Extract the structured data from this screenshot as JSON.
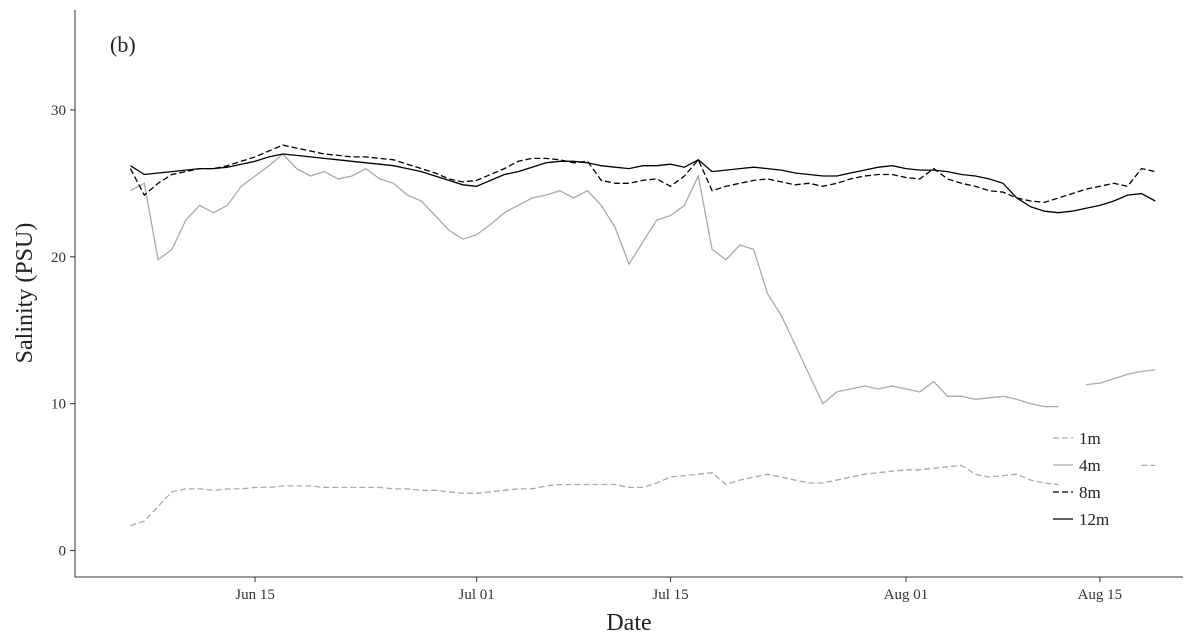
{
  "chart_data": {
    "type": "line",
    "panel_label": "(b)",
    "x_label": "Date",
    "y_label": "Salinity (PSU)",
    "x": [
      "Jun 06",
      "Jun 07",
      "Jun 08",
      "Jun 09",
      "Jun 10",
      "Jun 11",
      "Jun 12",
      "Jun 13",
      "Jun 14",
      "Jun 15",
      "Jun 16",
      "Jun 17",
      "Jun 18",
      "Jun 19",
      "Jun 20",
      "Jun 21",
      "Jun 22",
      "Jun 23",
      "Jun 24",
      "Jun 25",
      "Jun 26",
      "Jun 27",
      "Jun 28",
      "Jun 29",
      "Jun 30",
      "Jul 01",
      "Jul 02",
      "Jul 03",
      "Jul 04",
      "Jul 05",
      "Jul 06",
      "Jul 07",
      "Jul 08",
      "Jul 09",
      "Jul 10",
      "Jul 11",
      "Jul 12",
      "Jul 13",
      "Jul 14",
      "Jul 15",
      "Jul 16",
      "Jul 17",
      "Jul 18",
      "Jul 19",
      "Jul 20",
      "Jul 21",
      "Jul 22",
      "Jul 23",
      "Jul 24",
      "Jul 25",
      "Jul 26",
      "Jul 27",
      "Jul 28",
      "Jul 29",
      "Jul 30",
      "Jul 31",
      "Aug 01",
      "Aug 02",
      "Aug 03",
      "Aug 04",
      "Aug 05",
      "Aug 06",
      "Aug 07",
      "Aug 08",
      "Aug 09",
      "Aug 10",
      "Aug 11",
      "Aug 12",
      "Aug 13",
      "Aug 14",
      "Aug 15",
      "Aug 16",
      "Aug 17",
      "Aug 18",
      "Aug 19"
    ],
    "series": [
      {
        "name": "1m",
        "color": "#aaaaaa",
        "dashed": true,
        "values": [
          1.7,
          2.0,
          3.0,
          4.0,
          4.2,
          4.2,
          4.1,
          4.2,
          4.2,
          4.3,
          4.3,
          4.4,
          4.4,
          4.4,
          4.3,
          4.3,
          4.3,
          4.3,
          4.3,
          4.2,
          4.2,
          4.1,
          4.1,
          4.0,
          3.9,
          3.9,
          4.0,
          4.1,
          4.2,
          4.2,
          4.4,
          4.5,
          4.5,
          4.5,
          4.5,
          4.5,
          4.3,
          4.3,
          4.6,
          5.0,
          5.1,
          5.2,
          5.3,
          4.5,
          4.8,
          5.0,
          5.2,
          5.0,
          4.8,
          4.6,
          4.6,
          4.8,
          5.0,
          5.2,
          5.3,
          5.4,
          5.5,
          5.5,
          5.6,
          5.7,
          5.8,
          5.2,
          5.0,
          5.1,
          5.2,
          4.8,
          4.6,
          4.5,
          null,
          null,
          null,
          null,
          null,
          5.8,
          5.8
        ]
      },
      {
        "name": "4m",
        "color": "#aaaaaa",
        "dashed": false,
        "values": [
          24.5,
          25.0,
          19.8,
          20.5,
          22.5,
          23.5,
          23.0,
          23.5,
          24.8,
          25.5,
          26.2,
          27.0,
          26.0,
          25.5,
          25.8,
          25.3,
          25.5,
          26.0,
          25.3,
          25.0,
          24.2,
          23.8,
          22.8,
          21.8,
          21.2,
          21.5,
          22.2,
          23.0,
          23.5,
          24.0,
          24.2,
          24.5,
          24.0,
          24.5,
          23.5,
          22.0,
          19.5,
          21.0,
          22.5,
          22.8,
          23.5,
          25.5,
          20.5,
          19.8,
          20.8,
          20.5,
          17.5,
          16.0,
          14.0,
          12.0,
          10.0,
          10.8,
          11.0,
          11.2,
          11.0,
          11.2,
          11.0,
          10.8,
          11.5,
          10.5,
          10.5,
          10.3,
          10.4,
          10.5,
          10.3,
          10.0,
          9.8,
          9.8,
          null,
          11.3,
          11.4,
          11.7,
          12.0,
          12.2,
          12.3
        ]
      },
      {
        "name": "8m",
        "color": "#000000",
        "dashed": true,
        "values": [
          26.0,
          24.2,
          25.0,
          25.6,
          25.8,
          26.0,
          26.0,
          26.2,
          26.5,
          26.8,
          27.2,
          27.6,
          27.4,
          27.2,
          27.0,
          26.9,
          26.8,
          26.8,
          26.7,
          26.6,
          26.3,
          26.0,
          25.7,
          25.3,
          25.1,
          25.2,
          25.6,
          26.0,
          26.5,
          26.7,
          26.7,
          26.6,
          26.4,
          26.5,
          25.2,
          25.0,
          25.0,
          25.2,
          25.3,
          24.8,
          25.5,
          26.6,
          24.5,
          24.8,
          25.0,
          25.2,
          25.3,
          25.1,
          24.9,
          25.0,
          24.8,
          25.0,
          25.3,
          25.5,
          25.6,
          25.6,
          25.4,
          25.3,
          26.0,
          25.3,
          25.0,
          24.8,
          24.5,
          24.4,
          24.0,
          23.8,
          23.7,
          24.0,
          24.3,
          24.6,
          24.8,
          25.0,
          24.8,
          26.0,
          25.8
        ]
      },
      {
        "name": "12m",
        "color": "#000000",
        "dashed": false,
        "values": [
          26.2,
          25.6,
          25.7,
          25.8,
          25.9,
          26.0,
          26.0,
          26.1,
          26.3,
          26.5,
          26.8,
          27.0,
          26.9,
          26.8,
          26.7,
          26.6,
          26.5,
          26.4,
          26.3,
          26.2,
          26.0,
          25.8,
          25.5,
          25.2,
          24.9,
          24.8,
          25.2,
          25.6,
          25.8,
          26.1,
          26.4,
          26.5,
          26.5,
          26.4,
          26.2,
          26.1,
          26.0,
          26.2,
          26.2,
          26.3,
          26.1,
          26.6,
          25.8,
          25.9,
          26.0,
          26.1,
          26.0,
          25.9,
          25.7,
          25.6,
          25.5,
          25.5,
          25.7,
          25.9,
          26.1,
          26.2,
          26.0,
          25.9,
          25.9,
          25.8,
          25.6,
          25.5,
          25.3,
          25.0,
          24.0,
          23.4,
          23.1,
          23.0,
          23.1,
          23.3,
          23.5,
          23.8,
          24.2,
          24.3,
          23.8
        ]
      }
    ],
    "xlim": [
      "Jun 02",
      "Aug 21"
    ],
    "xticks": [
      "Jun 15",
      "Jul 01",
      "Jul 15",
      "Aug 01",
      "Aug 15"
    ],
    "ylim": [
      -1.8,
      36.8
    ],
    "yticks": [
      0,
      10,
      20,
      30
    ],
    "grid": false,
    "legend": "bottom-right"
  }
}
